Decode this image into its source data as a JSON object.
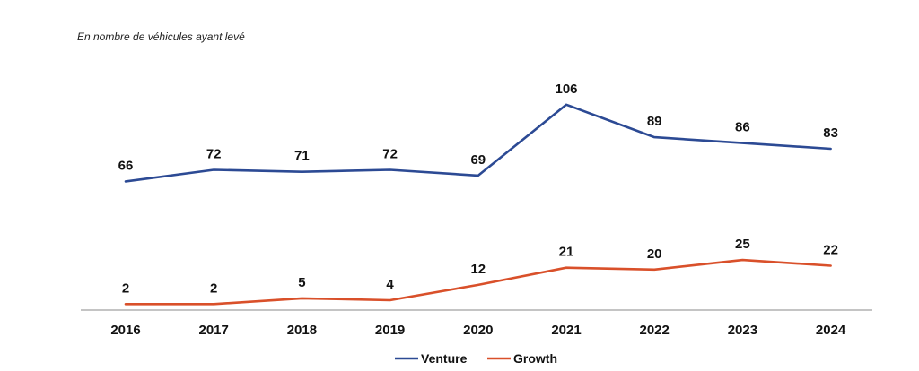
{
  "chart_data": {
    "type": "line",
    "subtitle": "En nombre de véhicules ayant levé",
    "title": "",
    "xlabel": "",
    "ylabel": "",
    "categories": [
      "2016",
      "2017",
      "2018",
      "2019",
      "2020",
      "2021",
      "2022",
      "2023",
      "2024"
    ],
    "series": [
      {
        "name": "Venture",
        "color": "#2c4a94",
        "values": [
          66,
          72,
          71,
          72,
          69,
          106,
          89,
          86,
          83
        ]
      },
      {
        "name": "Growth",
        "color": "#d9502a",
        "values": [
          2,
          2,
          5,
          4,
          12,
          21,
          20,
          25,
          22
        ]
      }
    ],
    "ylim": [
      0,
      130
    ],
    "grid": false,
    "legend": "bottom-center"
  }
}
